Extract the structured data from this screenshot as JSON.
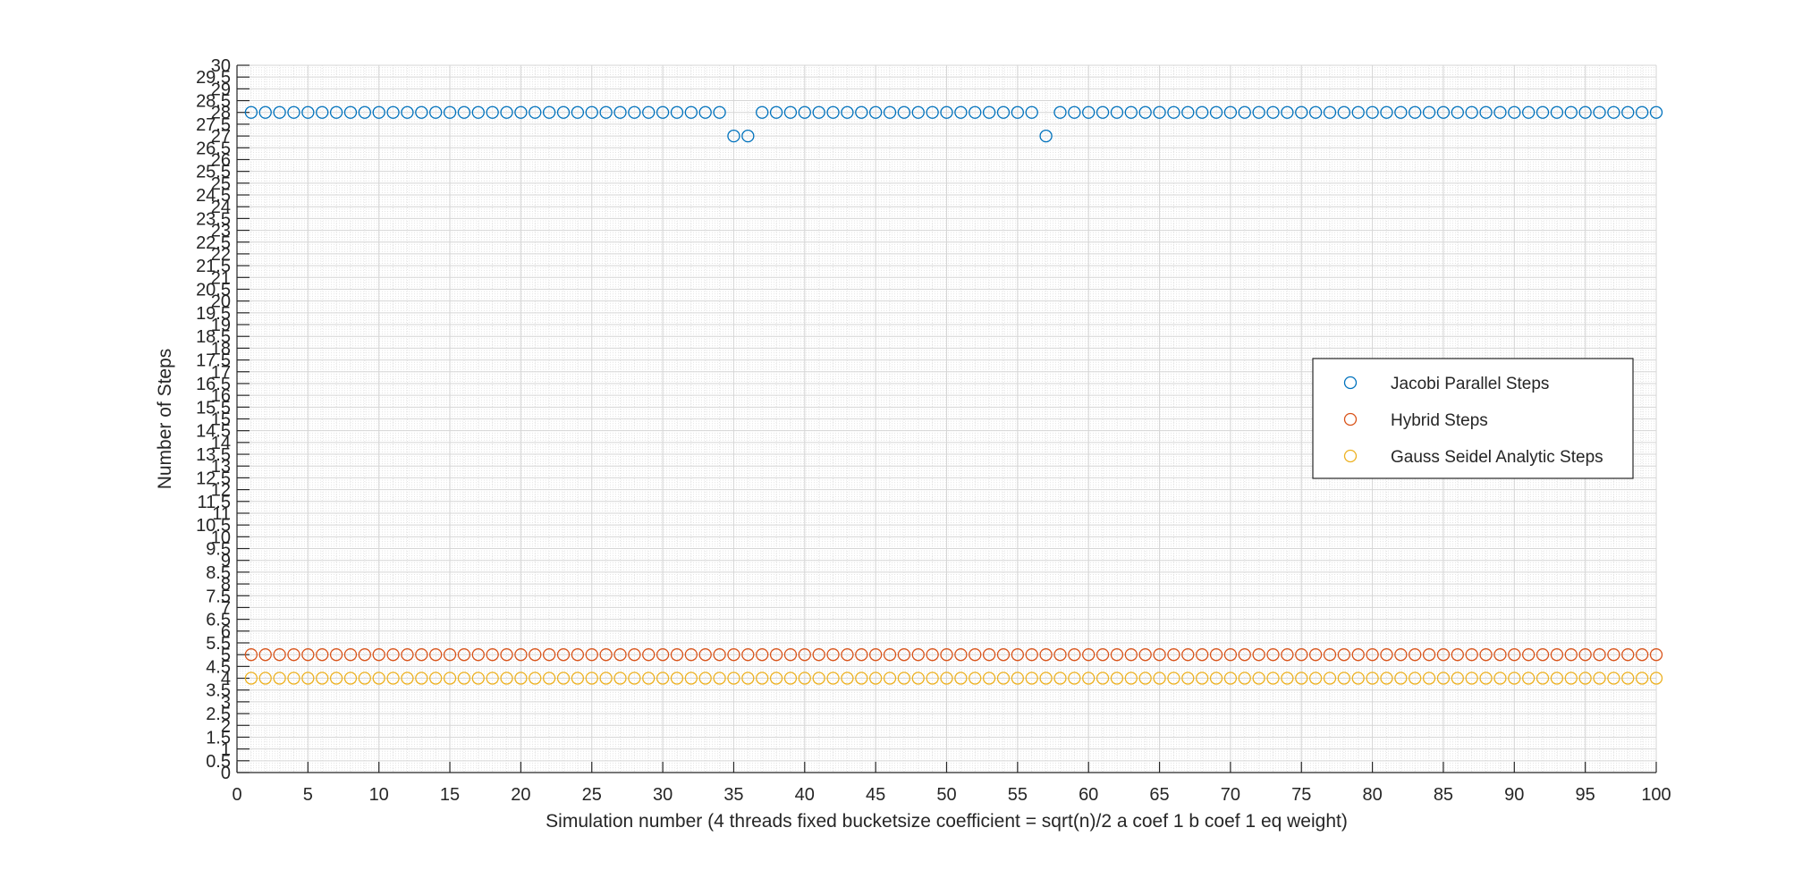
{
  "chart_data": {
    "type": "scatter",
    "title": "",
    "xlabel": "Simulation number (4 threads fixed bucketsize coefficient = sqrt(n)/2 a coef 1 b coef 1 eq weight)",
    "ylabel": "Number of Steps",
    "xlim": [
      0,
      100
    ],
    "ylim": [
      0,
      30
    ],
    "xticks": [
      0,
      5,
      10,
      15,
      20,
      25,
      30,
      35,
      40,
      45,
      50,
      55,
      60,
      65,
      70,
      75,
      80,
      85,
      90,
      95,
      100
    ],
    "xtick_labels": [
      "0",
      "5",
      "10",
      "15",
      "20",
      "25",
      "30",
      "35",
      "40",
      "45",
      "50",
      "55",
      "60",
      "65",
      "70",
      "75",
      "80",
      "85",
      "90",
      "95",
      "100"
    ],
    "yticks": [
      0,
      0.5,
      1,
      1.5,
      2,
      2.5,
      3,
      3.5,
      4,
      4.5,
      5,
      5.5,
      6,
      6.5,
      7,
      7.5,
      8,
      8.5,
      9,
      9.5,
      10,
      10.5,
      11,
      11.5,
      12,
      12.5,
      13,
      13.5,
      14,
      14.5,
      15,
      15.5,
      16,
      16.5,
      17,
      17.5,
      18,
      18.5,
      19,
      19.5,
      20,
      20.5,
      21,
      21.5,
      22,
      22.5,
      23,
      23.5,
      24,
      24.5,
      25,
      25.5,
      26,
      26.5,
      27,
      27.5,
      28,
      28.5,
      29,
      29.5,
      30
    ],
    "ytick_labels": [
      "0",
      "0.5",
      "1",
      "1.5",
      "2",
      "2.5",
      "3",
      "3.5",
      "4",
      "4.5",
      "5",
      "5.5",
      "6",
      "6.5",
      "7",
      "7.5",
      "8",
      "8.5",
      "9",
      "9.5",
      "10",
      "10.5",
      "11",
      "11.5",
      "12",
      "12.5",
      "13",
      "13.5",
      "14",
      "14.5",
      "15",
      "15.5",
      "16",
      "16.5",
      "17",
      "17.5",
      "18",
      "18.5",
      "19",
      "19.5",
      "20",
      "20.5",
      "21",
      "21.5",
      "22",
      "22.5",
      "23",
      "23.5",
      "24",
      "24.5",
      "25",
      "25.5",
      "26",
      "26.5",
      "27",
      "27.5",
      "28",
      "28.5",
      "29",
      "29.5",
      "30"
    ],
    "grid": true,
    "minor_grid": true,
    "legend_position": "right",
    "x": [
      1,
      2,
      3,
      4,
      5,
      6,
      7,
      8,
      9,
      10,
      11,
      12,
      13,
      14,
      15,
      16,
      17,
      18,
      19,
      20,
      21,
      22,
      23,
      24,
      25,
      26,
      27,
      28,
      29,
      30,
      31,
      32,
      33,
      34,
      35,
      36,
      37,
      38,
      39,
      40,
      41,
      42,
      43,
      44,
      45,
      46,
      47,
      48,
      49,
      50,
      51,
      52,
      53,
      54,
      55,
      56,
      57,
      58,
      59,
      60,
      61,
      62,
      63,
      64,
      65,
      66,
      67,
      68,
      69,
      70,
      71,
      72,
      73,
      74,
      75,
      76,
      77,
      78,
      79,
      80,
      81,
      82,
      83,
      84,
      85,
      86,
      87,
      88,
      89,
      90,
      91,
      92,
      93,
      94,
      95,
      96,
      97,
      98,
      99,
      100
    ],
    "series": [
      {
        "name": "Jacobi Parallel Steps",
        "color": "#0072BD",
        "values": [
          28,
          28,
          28,
          28,
          28,
          28,
          28,
          28,
          28,
          28,
          28,
          28,
          28,
          28,
          28,
          28,
          28,
          28,
          28,
          28,
          28,
          28,
          28,
          28,
          28,
          28,
          28,
          28,
          28,
          28,
          28,
          28,
          28,
          28,
          27,
          27,
          28,
          28,
          28,
          28,
          28,
          28,
          28,
          28,
          28,
          28,
          28,
          28,
          28,
          28,
          28,
          28,
          28,
          28,
          28,
          28,
          27,
          28,
          28,
          28,
          28,
          28,
          28,
          28,
          28,
          28,
          28,
          28,
          28,
          28,
          28,
          28,
          28,
          28,
          28,
          28,
          28,
          28,
          28,
          28,
          28,
          28,
          28,
          28,
          28,
          28,
          28,
          28,
          28,
          28,
          28,
          28,
          28,
          28,
          28,
          28,
          28,
          28,
          28,
          28
        ]
      },
      {
        "name": "Hybrid Steps",
        "color": "#D95319",
        "values": [
          5,
          5,
          5,
          5,
          5,
          5,
          5,
          5,
          5,
          5,
          5,
          5,
          5,
          5,
          5,
          5,
          5,
          5,
          5,
          5,
          5,
          5,
          5,
          5,
          5,
          5,
          5,
          5,
          5,
          5,
          5,
          5,
          5,
          5,
          5,
          5,
          5,
          5,
          5,
          5,
          5,
          5,
          5,
          5,
          5,
          5,
          5,
          5,
          5,
          5,
          5,
          5,
          5,
          5,
          5,
          5,
          5,
          5,
          5,
          5,
          5,
          5,
          5,
          5,
          5,
          5,
          5,
          5,
          5,
          5,
          5,
          5,
          5,
          5,
          5,
          5,
          5,
          5,
          5,
          5,
          5,
          5,
          5,
          5,
          5,
          5,
          5,
          5,
          5,
          5,
          5,
          5,
          5,
          5,
          5,
          5,
          5,
          5,
          5,
          5
        ]
      },
      {
        "name": "Gauss Seidel Analytic Steps",
        "color": "#EDB120",
        "values": [
          4,
          4,
          4,
          4,
          4,
          4,
          4,
          4,
          4,
          4,
          4,
          4,
          4,
          4,
          4,
          4,
          4,
          4,
          4,
          4,
          4,
          4,
          4,
          4,
          4,
          4,
          4,
          4,
          4,
          4,
          4,
          4,
          4,
          4,
          4,
          4,
          4,
          4,
          4,
          4,
          4,
          4,
          4,
          4,
          4,
          4,
          4,
          4,
          4,
          4,
          4,
          4,
          4,
          4,
          4,
          4,
          4,
          4,
          4,
          4,
          4,
          4,
          4,
          4,
          4,
          4,
          4,
          4,
          4,
          4,
          4,
          4,
          4,
          4,
          4,
          4,
          4,
          4,
          4,
          4,
          4,
          4,
          4,
          4,
          4,
          4,
          4,
          4,
          4,
          4,
          4,
          4,
          4,
          4,
          4,
          4,
          4,
          4,
          4,
          4
        ]
      }
    ]
  }
}
